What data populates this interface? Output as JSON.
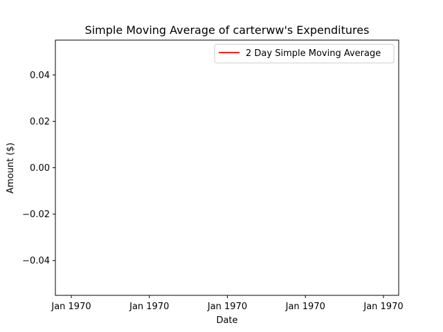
{
  "chart_data": {
    "type": "line",
    "title": "Simple Moving Average of carterww's Expenditures",
    "xlabel": "Date",
    "ylabel": "Amount ($)",
    "x_tick_labels": [
      "Jan 1970",
      "Jan 1970",
      "Jan 1970",
      "Jan 1970",
      "Jan 1970"
    ],
    "y_ticks": [
      -0.04,
      -0.02,
      0.0,
      0.02,
      0.04
    ],
    "y_tick_labels": [
      "−0.04",
      "−0.02",
      "0.00",
      "0.02",
      "0.04"
    ],
    "ylim": [
      -0.055,
      0.055
    ],
    "grid": false,
    "legend_position": "upper-right",
    "series": [
      {
        "name": "2 Day Simple Moving Average",
        "color": "#ff0000",
        "values": []
      }
    ]
  }
}
